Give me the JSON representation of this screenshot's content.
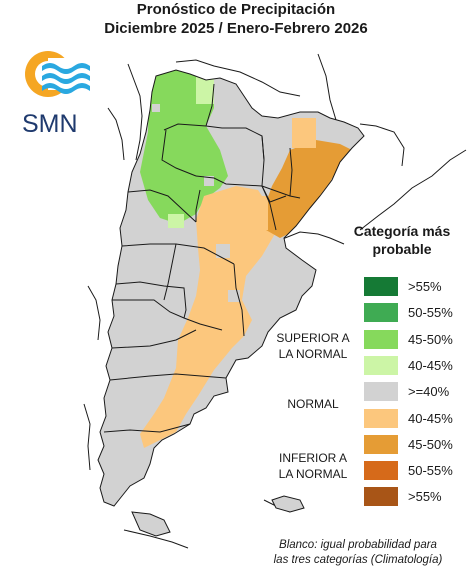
{
  "title": {
    "line1": "Pronóstico de Precipitación",
    "line2": "Diciembre 2025 / Enero-Febrero 2026"
  },
  "logo": {
    "text": "SMN",
    "sun_color": "#f5a623",
    "wave_color": "#2aa8e0"
  },
  "legend": {
    "title_line1": "Categoría más",
    "title_line2": "probable",
    "groups": {
      "superior_line1": "SUPERIOR A",
      "superior_line2": "LA NORMAL",
      "normal": "NORMAL",
      "inferior_line1": "INFERIOR A",
      "inferior_line2": "LA NORMAL"
    },
    "items": [
      {
        "label": ">55%",
        "color": "#157a35",
        "group": "superior"
      },
      {
        "label": "50-55%",
        "color": "#3fab53",
        "group": "superior"
      },
      {
        "label": "45-50%",
        "color": "#86d95c",
        "group": "superior"
      },
      {
        "label": "40-45%",
        "color": "#ccf5a6",
        "group": "superior"
      },
      {
        "label": ">=40%",
        "color": "#d2d2d2",
        "group": "normal"
      },
      {
        "label": "40-45%",
        "color": "#fcc77d",
        "group": "inferior"
      },
      {
        "label": "45-50%",
        "color": "#e59c35",
        "group": "inferior"
      },
      {
        "label": "50-55%",
        "color": "#d66a1a",
        "group": "inferior"
      },
      {
        "label": ">55%",
        "color": "#a85517",
        "group": "inferior"
      }
    ]
  },
  "note": {
    "line1": "Blanco: igual probabilidad para",
    "line2": "las tres categorías (Climatología)"
  },
  "map_colors": {
    "normal": "#d2d2d2",
    "green": "#86d95c",
    "light_green": "#ccf5a6",
    "light_orange": "#fcc77d",
    "orange": "#e59c35",
    "border": "#1a1a1a"
  }
}
